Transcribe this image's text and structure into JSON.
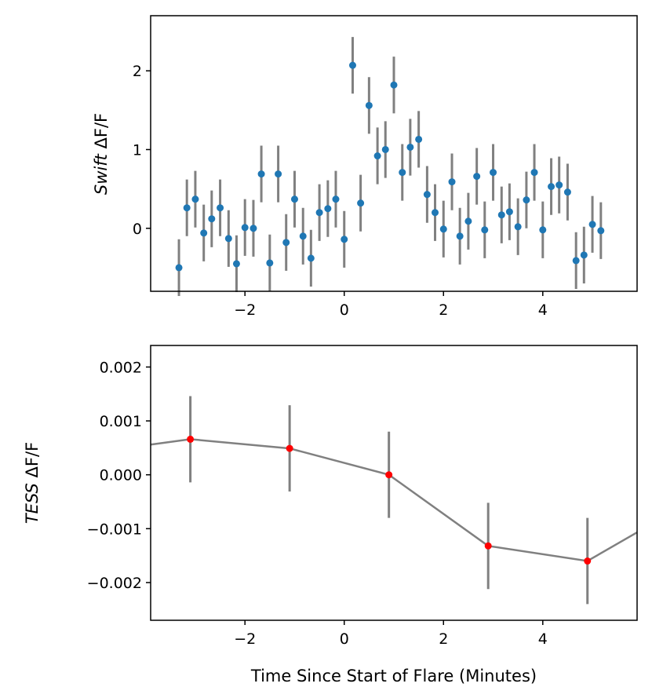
{
  "chart_data": [
    {
      "type": "scatter",
      "ylabel_italic": "Swift",
      "ylabel_rest": " ΔF/F",
      "xlabel": "",
      "xlim": [
        -3.9,
        5.9
      ],
      "ylim": [
        -0.8,
        2.7
      ],
      "xticks": [
        -2,
        0,
        2,
        4
      ],
      "xtick_labels": [
        "−2",
        "0",
        "2",
        "4"
      ],
      "yticks": [
        0,
        1,
        2
      ],
      "ytick_labels": [
        "0",
        "1",
        "2"
      ],
      "marker_color": "#1f77b4",
      "errorbar_color": "#808080",
      "series": [
        {
          "name": "Swift",
          "x": [
            -3.33,
            -3.17,
            -3.0,
            -2.83,
            -2.67,
            -2.5,
            -2.33,
            -2.17,
            -2.0,
            -1.83,
            -1.67,
            -1.5,
            -1.33,
            -1.17,
            -1.0,
            -0.83,
            -0.67,
            -0.5,
            -0.33,
            -0.17,
            0.0,
            0.17,
            0.33,
            0.5,
            0.67,
            0.83,
            1.0,
            1.17,
            1.33,
            1.5,
            1.67,
            1.83,
            2.0,
            2.17,
            2.33,
            2.5,
            2.67,
            2.83,
            3.0,
            3.17,
            3.33,
            3.5,
            3.67,
            3.83,
            4.0,
            4.17,
            4.33,
            4.5,
            4.67,
            4.83,
            5.0,
            5.17
          ],
          "y": [
            -0.5,
            0.26,
            0.37,
            -0.06,
            0.12,
            0.26,
            -0.13,
            -0.45,
            0.01,
            0.0,
            0.69,
            -0.44,
            0.69,
            -0.18,
            0.37,
            -0.1,
            -0.38,
            0.2,
            0.25,
            0.37,
            -0.14,
            2.07,
            0.32,
            1.56,
            0.92,
            1.0,
            1.82,
            0.71,
            1.03,
            1.13,
            0.43,
            0.2,
            -0.01,
            0.59,
            -0.1,
            0.09,
            0.66,
            -0.02,
            0.71,
            0.17,
            0.21,
            0.02,
            0.36,
            0.71,
            -0.02,
            0.53,
            0.55,
            0.46,
            -0.41,
            -0.34,
            0.05,
            -0.03
          ],
          "yerr": 0.36
        }
      ]
    },
    {
      "type": "line",
      "ylabel_italic": "TESS",
      "ylabel_rest": " ΔF/F",
      "xlabel": "Time Since Start of Flare (Minutes)",
      "xlim": [
        -3.9,
        5.9
      ],
      "ylim": [
        -0.0027,
        0.0024
      ],
      "xticks": [
        -2,
        0,
        2,
        4
      ],
      "xtick_labels": [
        "−2",
        "0",
        "2",
        "4"
      ],
      "yticks": [
        0.002,
        0.001,
        0.0,
        -0.001,
        -0.002
      ],
      "ytick_labels": [
        "0.002",
        "0.001",
        "0.000",
        "−0.001",
        "−0.002"
      ],
      "marker_color": "#ff0000",
      "line_color": "#808080",
      "errorbar_color": "#808080",
      "series": [
        {
          "name": "TESS",
          "x": [
            -3.1,
            -1.1,
            0.9,
            2.9,
            4.9
          ],
          "y": [
            0.00066,
            0.00049,
            0.0,
            -0.00132,
            -0.0016
          ],
          "yerr": 0.0008
        }
      ],
      "line_extension": {
        "x_start": -3.9,
        "y_start": 0.00056,
        "x_end": 5.9,
        "y_end": -0.00107
      }
    }
  ]
}
